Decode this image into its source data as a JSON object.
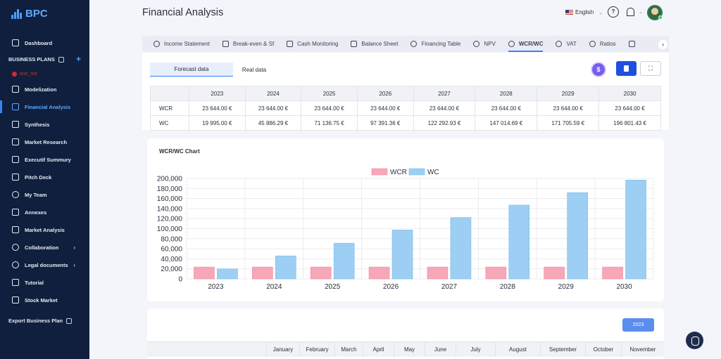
{
  "app": {
    "logo": "BPC"
  },
  "sidebar": {
    "dashboard": "Dashboard",
    "business_plans": "BUSINESS PLANS",
    "project_name": "test_mtr",
    "items": [
      {
        "label": "Modelization"
      },
      {
        "label": "Financial Analysis"
      },
      {
        "label": "Synthesis"
      },
      {
        "label": "Market Research"
      },
      {
        "label": "Executif Summury"
      },
      {
        "label": "Pitch Deck"
      },
      {
        "label": "My Team"
      },
      {
        "label": "Annexes"
      },
      {
        "label": "Market Analysis"
      },
      {
        "label": "Collaboration"
      },
      {
        "label": "Legal documents"
      },
      {
        "label": "Tutorial"
      },
      {
        "label": "Stock Market"
      }
    ],
    "export": "Export Business Plan"
  },
  "header": {
    "title": "Financial Analysis",
    "language": "English"
  },
  "tabs": [
    {
      "label": "Income Statement"
    },
    {
      "label": "Break-even & Sf"
    },
    {
      "label": "Cash Monitoring"
    },
    {
      "label": "Balance Sheet"
    },
    {
      "label": "Financing Table"
    },
    {
      "label": "NPV"
    },
    {
      "label": "WCR/WC"
    },
    {
      "label": "VAT"
    },
    {
      "label": "Ratios"
    }
  ],
  "subtabs": {
    "forecast": "Forecast data",
    "real": "Real data"
  },
  "table": {
    "years": [
      "2023",
      "2024",
      "2025",
      "2026",
      "2027",
      "2028",
      "2029",
      "2030"
    ],
    "rows": [
      {
        "label": "WCR",
        "values": [
          "23 644.00 €",
          "23 644.00 €",
          "23 644.00 €",
          "23 644.00 €",
          "23 644.00 €",
          "23 644.00 €",
          "23 644.00 €",
          "23 644.00 €"
        ]
      },
      {
        "label": "WC",
        "values": [
          "19 995.00 €",
          "45 886.29 €",
          "71 136.75 €",
          "97 391.36 €",
          "122 292.93 €",
          "147 014.69 €",
          "171 705.59 €",
          "196 801.43 €"
        ]
      }
    ]
  },
  "chart_title": "WCR/WC Chart",
  "chart_data": {
    "type": "bar",
    "categories": [
      "2023",
      "2024",
      "2025",
      "2026",
      "2027",
      "2028",
      "2029",
      "2030"
    ],
    "series": [
      {
        "name": "WCR",
        "color": "#f7a8b8",
        "values": [
          23644,
          23644,
          23644,
          23644,
          23644,
          23644,
          23644,
          23644
        ]
      },
      {
        "name": "WC",
        "color": "#9ccff3",
        "values": [
          19995,
          45886.29,
          71136.75,
          97391.36,
          122292.93,
          147014.69,
          171705.59,
          196801.43
        ]
      }
    ],
    "ylim": [
      0,
      200000
    ],
    "yticks": [
      "0",
      "20,000",
      "40,000",
      "60,000",
      "80,000",
      "100,000",
      "120,000",
      "140,000",
      "160,000",
      "180,000",
      "200,000"
    ],
    "legend": "top-center",
    "grid": true
  },
  "monthly": {
    "year_button": "2023",
    "months": [
      "January",
      "February",
      "March",
      "April",
      "May",
      "June",
      "July",
      "August",
      "September",
      "October",
      "November"
    ]
  }
}
